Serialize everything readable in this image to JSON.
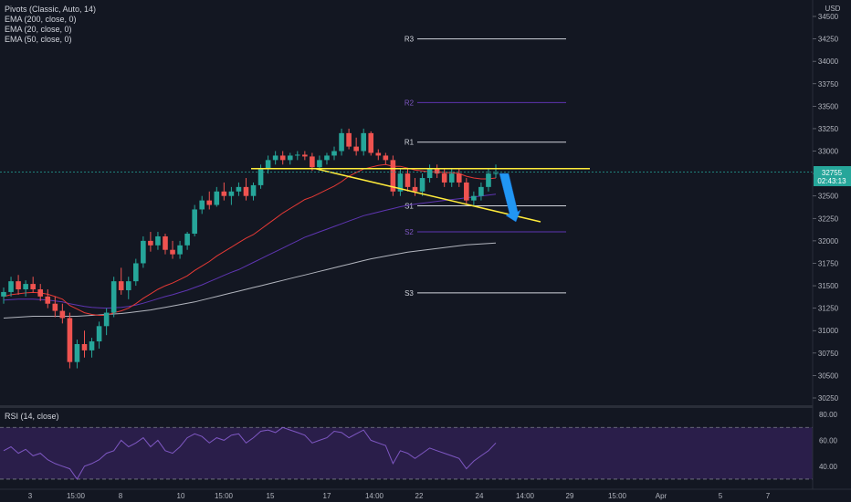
{
  "legend": {
    "pivots": "Pivots (Classic, Auto, 14)",
    "ema200": "EMA (200, close, 0)",
    "ema20": "EMA (20, close, 0)",
    "ema50": "EMA (50, close, 0)"
  },
  "currency": "USD",
  "price_tag": {
    "price": "32755",
    "countdown": "02:43:13"
  },
  "rsi": {
    "label": "RSI (14, close)"
  },
  "colors": {
    "background": "#131722",
    "up": "#26a69a",
    "down": "#ef5350",
    "ema20": "#e53935",
    "ema50": "#5e35b1",
    "ema200": "#b2b5be",
    "trendline": "#ffeb3b",
    "arrow": "#2196f3",
    "rsi_line": "#7e57c2",
    "rsi_fill": "#2a1e4a"
  },
  "chart_data": {
    "type": "candlestick",
    "y_ticks": [
      "34500",
      "34250",
      "34000",
      "33750",
      "33500",
      "33250",
      "33000",
      "32750",
      "32500",
      "32250",
      "32000",
      "31750",
      "31500",
      "31250",
      "31000",
      "30750",
      "30500",
      "30250"
    ],
    "ylim": [
      30150,
      34550
    ],
    "x_ticks": [
      "3",
      "15:00",
      "8",
      "10",
      "15:00",
      "15",
      "17",
      "14:00",
      "22",
      "24",
      "14:00",
      "29",
      "15:00",
      "Apr",
      "5",
      "7"
    ],
    "pivots": [
      {
        "label": "R3",
        "value": 34250
      },
      {
        "label": "R2",
        "value": 33540
      },
      {
        "label": "R1",
        "value": 33100
      },
      {
        "label": "S1",
        "value": 32390
      },
      {
        "label": "S2",
        "value": 32100
      },
      {
        "label": "S3",
        "value": 31420
      }
    ],
    "candles": [
      [
        31380,
        31480,
        31300,
        31430
      ],
      [
        31430,
        31600,
        31380,
        31550
      ],
      [
        31550,
        31620,
        31400,
        31460
      ],
      [
        31460,
        31560,
        31380,
        31520
      ],
      [
        31520,
        31600,
        31420,
        31460
      ],
      [
        31460,
        31520,
        31330,
        31380
      ],
      [
        31380,
        31460,
        31250,
        31300
      ],
      [
        31300,
        31380,
        31150,
        31220
      ],
      [
        31220,
        31300,
        31080,
        31140
      ],
      [
        31140,
        31200,
        30580,
        30650
      ],
      [
        30650,
        30900,
        30580,
        30850
      ],
      [
        30850,
        31000,
        30700,
        30780
      ],
      [
        30780,
        30920,
        30700,
        30880
      ],
      [
        30880,
        31100,
        30800,
        31050
      ],
      [
        31050,
        31250,
        30950,
        31200
      ],
      [
        31200,
        31600,
        31150,
        31550
      ],
      [
        31550,
        31700,
        31400,
        31450
      ],
      [
        31450,
        31600,
        31350,
        31550
      ],
      [
        31550,
        31800,
        31500,
        31750
      ],
      [
        31750,
        32050,
        31700,
        32000
      ],
      [
        32000,
        32100,
        31880,
        31950
      ],
      [
        31950,
        32100,
        31900,
        32050
      ],
      [
        32050,
        32080,
        31850,
        31900
      ],
      [
        31900,
        32000,
        31800,
        31850
      ],
      [
        31850,
        32000,
        31800,
        31950
      ],
      [
        31950,
        32100,
        31900,
        32080
      ],
      [
        32080,
        32400,
        32050,
        32350
      ],
      [
        32350,
        32500,
        32300,
        32450
      ],
      [
        32450,
        32550,
        32350,
        32400
      ],
      [
        32400,
        32600,
        32380,
        32550
      ],
      [
        32550,
        32650,
        32450,
        32500
      ],
      [
        32500,
        32600,
        32400,
        32550
      ],
      [
        32550,
        32650,
        32500,
        32600
      ],
      [
        32600,
        32700,
        32450,
        32500
      ],
      [
        32500,
        32650,
        32450,
        32620
      ],
      [
        32620,
        32850,
        32580,
        32800
      ],
      [
        32800,
        32950,
        32750,
        32900
      ],
      [
        32900,
        33000,
        32850,
        32950
      ],
      [
        32950,
        33000,
        32850,
        32900
      ],
      [
        32900,
        32980,
        32850,
        32950
      ],
      [
        32950,
        33000,
        32900,
        32960
      ],
      [
        32960,
        33000,
        32900,
        32940
      ],
      [
        32940,
        32980,
        32780,
        32820
      ],
      [
        32820,
        32950,
        32780,
        32900
      ],
      [
        32900,
        32980,
        32850,
        32950
      ],
      [
        32950,
        33050,
        32900,
        33000
      ],
      [
        33000,
        33250,
        32950,
        33200
      ],
      [
        33200,
        33250,
        33020,
        33050
      ],
      [
        33050,
        33150,
        32950,
        33000
      ],
      [
        33000,
        33250,
        32950,
        33200
      ],
      [
        33200,
        33220,
        32950,
        32980
      ],
      [
        32980,
        33020,
        32900,
        32950
      ],
      [
        32950,
        32980,
        32850,
        32900
      ],
      [
        32900,
        32950,
        32500,
        32550
      ],
      [
        32550,
        32800,
        32500,
        32750
      ],
      [
        32750,
        32800,
        32550,
        32600
      ],
      [
        32600,
        32700,
        32500,
        32550
      ],
      [
        32550,
        32750,
        32500,
        32700
      ],
      [
        32700,
        32850,
        32650,
        32800
      ],
      [
        32800,
        32850,
        32700,
        32750
      ],
      [
        32750,
        32800,
        32600,
        32650
      ],
      [
        32650,
        32800,
        32600,
        32750
      ],
      [
        32750,
        32800,
        32600,
        32650
      ],
      [
        32650,
        32700,
        32400,
        32450
      ],
      [
        32450,
        32550,
        32380,
        32500
      ],
      [
        32500,
        32650,
        32450,
        32600
      ],
      [
        32600,
        32800,
        32550,
        32750
      ],
      [
        32750,
        32850,
        32700,
        32755
      ]
    ],
    "ema20": [
      31380,
      31400,
      31410,
      31420,
      31425,
      31420,
      31405,
      31380,
      31350,
      31280,
      31240,
      31200,
      31180,
      31170,
      31170,
      31200,
      31220,
      31250,
      31300,
      31360,
      31410,
      31460,
      31500,
      31530,
      31570,
      31610,
      31670,
      31720,
      31770,
      31830,
      31880,
      31930,
      31980,
      32030,
      32070,
      32130,
      32190,
      32250,
      32310,
      32360,
      32410,
      32460,
      32490,
      32530,
      32570,
      32610,
      32660,
      32720,
      32760,
      32800,
      32820,
      32840,
      32850,
      32830,
      32830,
      32810,
      32790,
      32780,
      32770,
      32770,
      32760,
      32760,
      32750,
      32720,
      32700,
      32690,
      32690,
      32700
    ],
    "ema50": [
      31340,
      31345,
      31350,
      31350,
      31350,
      31345,
      31340,
      31330,
      31320,
      31300,
      31285,
      31270,
      31260,
      31255,
      31250,
      31255,
      31260,
      31270,
      31285,
      31305,
      31330,
      31355,
      31380,
      31400,
      31425,
      31450,
      31480,
      31510,
      31545,
      31580,
      31615,
      31650,
      31680,
      31720,
      31760,
      31800,
      31840,
      31880,
      31920,
      31960,
      32000,
      32040,
      32070,
      32100,
      32130,
      32160,
      32190,
      32220,
      32250,
      32280,
      32300,
      32320,
      32340,
      32360,
      32380,
      32395,
      32410,
      32420,
      32430,
      32440,
      32450,
      32460,
      32470,
      32480,
      32490,
      32500,
      32510,
      32520
    ],
    "ema200": [
      31140,
      31145,
      31150,
      31155,
      31160,
      31160,
      31160,
      31160,
      31160,
      31160,
      31160,
      31165,
      31170,
      31175,
      31180,
      31185,
      31190,
      31200,
      31210,
      31220,
      31230,
      31245,
      31260,
      31275,
      31290,
      31305,
      31320,
      31340,
      31360,
      31380,
      31400,
      31420,
      31440,
      31460,
      31480,
      31500,
      31520,
      31540,
      31560,
      31580,
      31600,
      31620,
      31640,
      31660,
      31680,
      31700,
      31720,
      31740,
      31760,
      31780,
      31800,
      31815,
      31830,
      31845,
      31860,
      31875,
      31885,
      31895,
      31905,
      31915,
      31925,
      31935,
      31945,
      31955,
      31960,
      31965,
      31970,
      31975
    ],
    "rsi": {
      "levels": [
        70,
        30
      ],
      "ticks": [
        "80.00",
        "60.00",
        "40.00"
      ],
      "ylim": [
        25,
        85
      ],
      "values": [
        52,
        55,
        50,
        53,
        48,
        50,
        45,
        42,
        40,
        38,
        30,
        40,
        42,
        45,
        50,
        52,
        60,
        55,
        58,
        62,
        55,
        60,
        52,
        50,
        55,
        62,
        65,
        63,
        58,
        62,
        60,
        64,
        65,
        58,
        62,
        67,
        68,
        66,
        70,
        68,
        66,
        64,
        58,
        60,
        62,
        67,
        66,
        62,
        65,
        68,
        60,
        58,
        56,
        42,
        52,
        50,
        46,
        50,
        54,
        52,
        50,
        48,
        46,
        38,
        44,
        48,
        52,
        58
      ]
    }
  }
}
